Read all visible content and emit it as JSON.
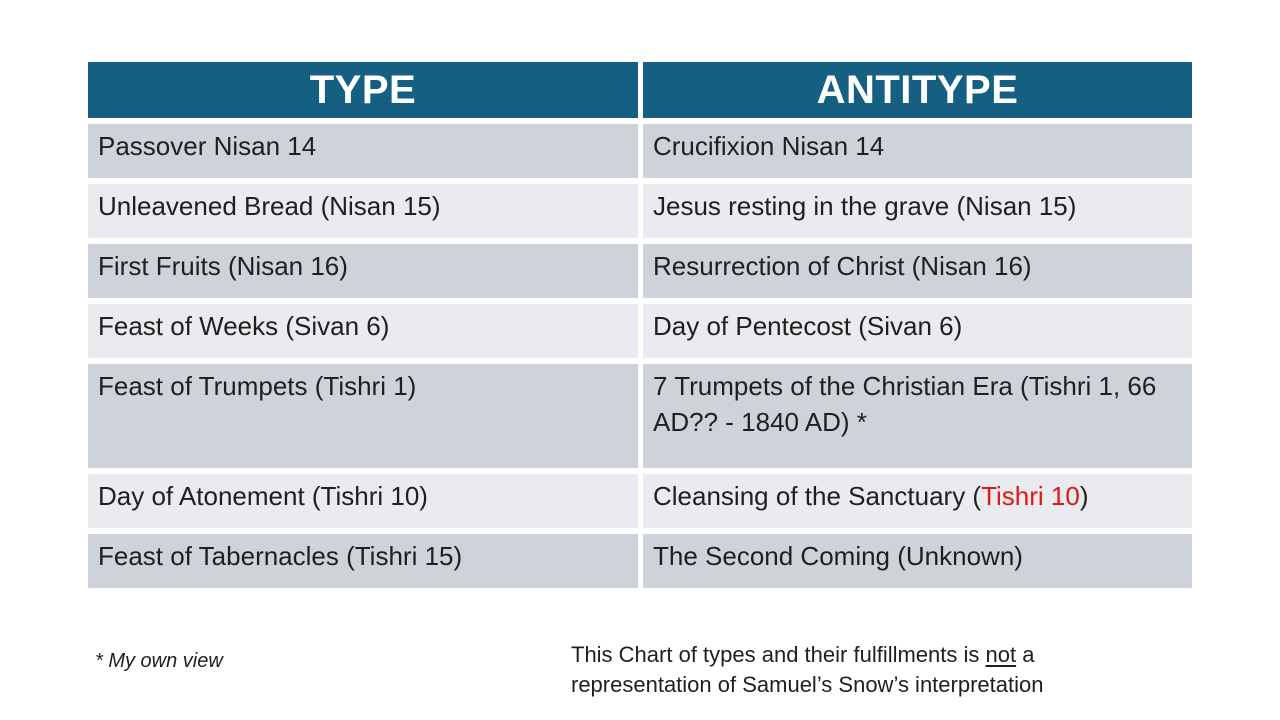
{
  "slide": {
    "background_color": "#ffffff"
  },
  "colors": {
    "header_bg": "#156082",
    "header_text": "#ffffff",
    "row_dark": "#CED3DA",
    "row_light": "#E9EBEE",
    "body_text": "#1f1f1f",
    "highlight_red": "#E01717"
  },
  "table": {
    "header": {
      "type_label": "TYPE",
      "antitype_label": "ANTITYPE"
    },
    "rows": [
      {
        "type": "Passover Nisan 14",
        "antitype": "Crucifixion Nisan 14"
      },
      {
        "type": "Unleavened Bread (Nisan 15)",
        "antitype": "Jesus resting in the grave (Nisan 15)"
      },
      {
        "type": "First Fruits (Nisan 16)",
        "antitype": "Resurrection of Christ (Nisan 16)"
      },
      {
        "type": "Feast of Weeks (Sivan 6)",
        "antitype": "Day of Pentecost (Sivan 6)"
      },
      {
        "type": "Feast of Trumpets (Tishri 1)",
        "antitype": "7 Trumpets of the Christian Era (Tishri 1, 66 AD?? - 1840 AD) *"
      },
      {
        "type": "Day of Atonement (Tishri 10)",
        "antitype_parts": {
          "pre": "Cleansing of the Sanctuary (",
          "highlight": "Tishri 10",
          "post": ")"
        }
      },
      {
        "type": "Feast of Tabernacles (Tishri 15)",
        "antitype": "The Second Coming (Unknown)"
      }
    ]
  },
  "footnote": {
    "text": "* My own view"
  },
  "caption": {
    "line1_pre": "This Chart of types and their fulfillments is ",
    "underlined_word": "not",
    "line1_post": " a",
    "line2": "representation of Samuel’s Snow’s interpretation"
  }
}
